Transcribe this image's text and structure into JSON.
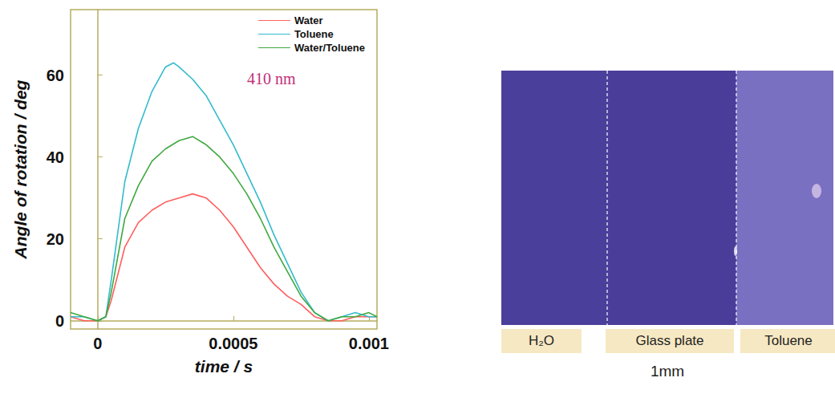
{
  "chart_data": {
    "type": "line",
    "annotation": "410 nm",
    "x_label": "time / s",
    "y_label": "Angle of rotation / deg",
    "xlim": [
      -0.0001,
      0.00103
    ],
    "xticks": [
      0,
      0.0005,
      0.001
    ],
    "ylim": [
      -2,
      76
    ],
    "yticks": [
      0,
      20,
      40,
      60
    ],
    "grid": false,
    "legend": "upper right",
    "series": [
      {
        "name": "Water",
        "color": "#ff5f5f",
        "x": [
          -0.0001,
          -5e-05,
          0,
          3e-05,
          5e-05,
          0.0001,
          0.00015,
          0.0002,
          0.00025,
          0.0003,
          0.00035,
          0.0004,
          0.00045,
          0.0005,
          0.00055,
          0.0006,
          0.00065,
          0.0007,
          0.00075,
          0.0008,
          0.00085,
          0.0009,
          0.00095,
          0.001,
          0.00103
        ],
        "values": [
          1,
          0,
          0,
          1,
          5,
          18,
          24,
          27,
          29,
          30,
          31,
          30,
          27,
          23,
          18,
          13,
          9,
          6,
          4,
          1,
          0,
          0,
          1,
          1,
          1
        ]
      },
      {
        "name": "Toluene",
        "color": "#33bbcc",
        "x": [
          -0.0001,
          -5e-05,
          0,
          3e-05,
          5e-05,
          0.0001,
          0.00015,
          0.0002,
          0.00025,
          0.00028,
          0.0003,
          0.00035,
          0.0004,
          0.00045,
          0.0005,
          0.00055,
          0.0006,
          0.00065,
          0.0007,
          0.00075,
          0.0008,
          0.00085,
          0.0009,
          0.00095,
          0.001,
          0.00103
        ],
        "values": [
          1,
          1,
          0,
          1,
          10,
          34,
          47,
          56,
          62,
          63,
          62,
          59,
          55,
          49,
          43,
          36,
          29,
          21,
          14,
          7,
          2,
          0,
          1,
          2,
          1,
          1
        ]
      },
      {
        "name": "Water/Toluene",
        "color": "#3fa83f",
        "x": [
          -0.0001,
          -5e-05,
          0,
          3e-05,
          5e-05,
          0.0001,
          0.00015,
          0.0002,
          0.00025,
          0.0003,
          0.00035,
          0.0004,
          0.00045,
          0.0005,
          0.00055,
          0.0006,
          0.00065,
          0.0007,
          0.00075,
          0.0008,
          0.00085,
          0.0009,
          0.00095,
          0.001,
          0.00103
        ],
        "values": [
          2,
          1,
          0,
          1,
          7,
          25,
          33,
          39,
          42,
          44,
          45,
          43,
          40,
          36,
          31,
          25,
          18,
          12,
          6,
          2,
          0,
          1,
          1,
          2,
          1
        ]
      }
    ]
  },
  "photo": {
    "regions": [
      {
        "label": "H₂O"
      },
      {
        "label": "Glass plate"
      },
      {
        "label": "Toluene"
      }
    ],
    "scale_label": "1mm"
  }
}
